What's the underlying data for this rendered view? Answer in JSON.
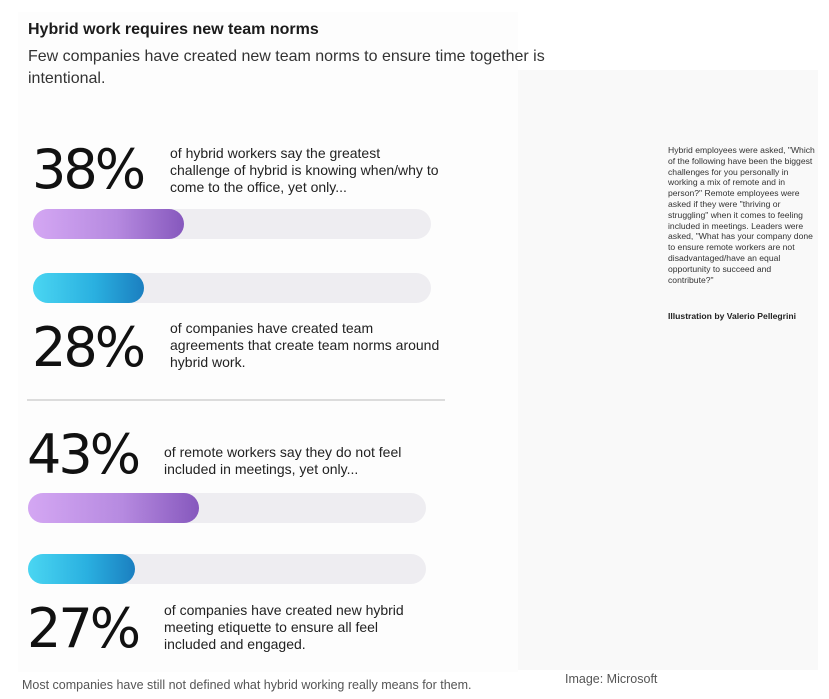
{
  "header": {
    "title": "Hybrid work requires new team norms",
    "subtitle": "Few companies have created new team norms to ensure time together is intentional."
  },
  "colors": {
    "purple_bar": "#b68ae0",
    "blue_bar": "#2ab0e0",
    "track": "#eeedf1"
  },
  "chart_data": {
    "type": "bar",
    "title": "Hybrid work requires new team norms",
    "subtitle": "Few companies have created new team norms to ensure time together is intentional.",
    "xlim": [
      0,
      100
    ],
    "groups": [
      {
        "items": [
          {
            "label": "38%",
            "value": 38,
            "color": "purple",
            "text": "of hybrid workers say the greatest challenge of hybrid is knowing when/why to come to the office, yet only..."
          },
          {
            "label": "28%",
            "value": 28,
            "color": "blue",
            "text": "of companies have created team agreements that create team norms around hybrid work."
          }
        ]
      },
      {
        "items": [
          {
            "label": "43%",
            "value": 43,
            "color": "purple",
            "text": "of remote workers say they do not feel included in meetings, yet only..."
          },
          {
            "label": "27%",
            "value": 27,
            "color": "blue",
            "text": "of companies have created new hybrid meeting etiquette to ensure all feel included and engaged."
          }
        ]
      }
    ]
  },
  "sidebar": {
    "methodology": "Hybrid employees were asked, \"Which of the following have been the biggest challenges for you personally in working a mix of remote and in person?\" Remote employees were asked if they were \"thriving or struggling\" when it comes to feeling included in meetings. Leaders were asked, \"What has your company done to ensure remote workers are not disadvantaged/have an equal opportunity to succeed and contribute?\"",
    "credit": "Illustration by Valerio Pellegrini"
  },
  "footer": {
    "caption": "Most companies have still not defined what hybrid working really means for them.",
    "source": "Image: Microsoft"
  }
}
